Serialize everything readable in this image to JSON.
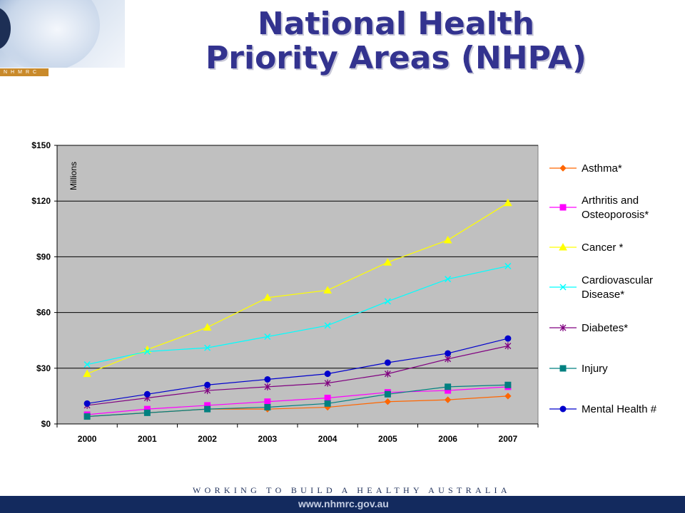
{
  "header": {
    "logo_text": "NHMRC",
    "title_line1": "National Health",
    "title_line2": "Priority Areas (NHPA)"
  },
  "footer": {
    "tagline": "WORKING TO BUILD A HEALTHY AUSTRALIA",
    "url": "www.nhmrc.gov.au"
  },
  "chart_data": {
    "type": "line",
    "ylabel": "Millions",
    "ylim": [
      0,
      150
    ],
    "yticks": [
      0,
      30,
      60,
      90,
      120,
      150
    ],
    "ytick_labels": [
      "$0",
      "$30",
      "$60",
      "$90",
      "$120",
      "$150"
    ],
    "categories": [
      "2000",
      "2001",
      "2002",
      "2003",
      "2004",
      "2005",
      "2006",
      "2007"
    ],
    "plot_background": "#c0c0c0",
    "grid": "horizontal",
    "legend_position": "right",
    "series": [
      {
        "name": "Asthma*",
        "color": "#ff6600",
        "marker": "diamond",
        "values": [
          4,
          6,
          8,
          8,
          9,
          12,
          13,
          15
        ]
      },
      {
        "name": "Arthritis and Osteoporosis*",
        "color": "#ff00ff",
        "marker": "square",
        "values": [
          5,
          8,
          10,
          12,
          14,
          17,
          18,
          20
        ]
      },
      {
        "name": "Cancer *",
        "color": "#ffff00",
        "marker": "triangle",
        "values": [
          27,
          40,
          52,
          68,
          72,
          87,
          99,
          119
        ]
      },
      {
        "name": "Cardiovascular Disease*",
        "color": "#00ffff",
        "marker": "x",
        "values": [
          32,
          39,
          41,
          47,
          53,
          66,
          78,
          85
        ]
      },
      {
        "name": "Diabetes*",
        "color": "#800080",
        "marker": "star",
        "values": [
          10,
          14,
          18,
          20,
          22,
          27,
          35,
          42
        ]
      },
      {
        "name": "Injury",
        "color": "#008080",
        "marker": "square",
        "values": [
          4,
          6,
          8,
          9,
          11,
          16,
          20,
          21
        ]
      },
      {
        "name": "Mental Health #",
        "color": "#0000cc",
        "marker": "circle",
        "values": [
          11,
          16,
          21,
          24,
          27,
          33,
          38,
          46
        ]
      }
    ]
  }
}
